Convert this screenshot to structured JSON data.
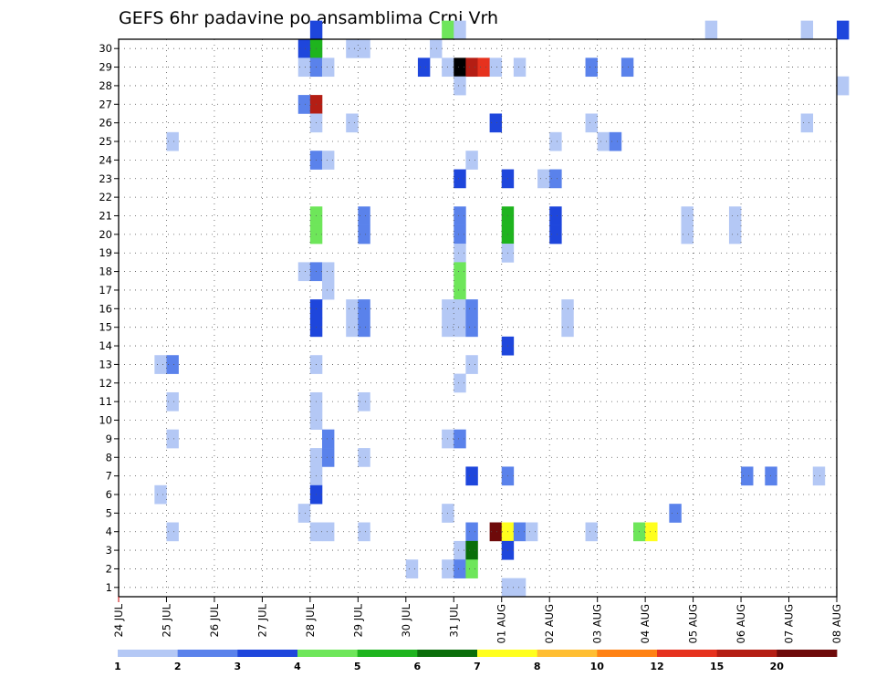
{
  "chart_data": {
    "type": "heatmap",
    "title": "GEFS 6hr padavine po ansamblima Crni Vrh",
    "xlabel": "",
    "ylabel": "",
    "x_ticks": [
      "24 JUL",
      "25 JUL",
      "26 JUL",
      "27 JUL",
      "28 JUL",
      "29 JUL",
      "30 JUL",
      "31 JUL",
      "01 AUG",
      "02 AUG",
      "03 AUG",
      "04 AUG",
      "05 AUG",
      "06 AUG",
      "07 AUG",
      "08 AUG"
    ],
    "y_ticks": [
      "1",
      "2",
      "3",
      "4",
      "5",
      "6",
      "7",
      "8",
      "9",
      "10",
      "11",
      "12",
      "13",
      "14",
      "15",
      "16",
      "17",
      "18",
      "19",
      "20",
      "21",
      "22",
      "23",
      "24",
      "25",
      "26",
      "27",
      "28",
      "29",
      "30"
    ],
    "x_step_unit": "6hr",
    "x_range_steps": [
      0,
      60
    ],
    "y_range": [
      0.5,
      30.5
    ],
    "grid": true,
    "colorbar": {
      "labels": [
        "1",
        "2",
        "3",
        "4",
        "5",
        "6",
        "7",
        "8",
        "10",
        "12",
        "15",
        "20"
      ],
      "colors": [
        "#b4c8f5",
        "#5a82eb",
        "#1e46dc",
        "#6ee65a",
        "#1eb41e",
        "#0a6e0a",
        "#ffff1e",
        "#ffbe32",
        "#ff8214",
        "#e6321e",
        "#b41e14",
        "#6e0a0a"
      ]
    },
    "cells": [
      [
        16,
        30,
        3
      ],
      [
        27,
        30,
        4
      ],
      [
        28,
        30,
        1
      ],
      [
        49,
        30,
        1
      ],
      [
        57,
        30,
        1
      ],
      [
        60,
        30,
        3
      ],
      [
        15,
        29,
        3
      ],
      [
        16,
        29,
        5
      ],
      [
        19,
        29,
        1
      ],
      [
        20,
        29,
        1
      ],
      [
        26,
        29,
        1
      ],
      [
        15,
        28,
        1
      ],
      [
        16,
        28,
        2
      ],
      [
        17,
        28,
        1
      ],
      [
        25,
        28,
        3
      ],
      [
        27,
        28,
        1
      ],
      [
        28,
        28,
        14
      ],
      [
        29,
        28,
        11
      ],
      [
        30,
        28,
        10
      ],
      [
        31,
        28,
        1
      ],
      [
        33,
        28,
        1
      ],
      [
        39,
        28,
        2
      ],
      [
        42,
        28,
        2
      ],
      [
        28,
        27,
        1
      ],
      [
        60,
        27,
        1
      ],
      [
        15,
        26,
        2
      ],
      [
        16,
        26,
        11
      ],
      [
        16,
        25,
        1
      ],
      [
        19,
        25,
        1
      ],
      [
        31,
        25,
        3
      ],
      [
        39,
        25,
        1
      ],
      [
        57,
        25,
        1
      ],
      [
        4,
        24,
        1
      ],
      [
        36,
        24,
        1
      ],
      [
        40,
        24,
        1
      ],
      [
        41,
        24,
        2
      ],
      [
        16,
        23,
        2
      ],
      [
        17,
        23,
        1
      ],
      [
        29,
        23,
        1
      ],
      [
        28,
        22,
        3
      ],
      [
        32,
        22,
        3
      ],
      [
        35,
        22,
        1
      ],
      [
        36,
        22,
        2
      ],
      [
        16,
        20,
        4
      ],
      [
        20,
        20,
        2
      ],
      [
        28,
        20,
        2
      ],
      [
        32,
        20,
        5
      ],
      [
        36,
        20,
        3
      ],
      [
        47,
        20,
        1
      ],
      [
        51,
        20,
        1
      ],
      [
        16,
        19,
        4
      ],
      [
        20,
        19,
        2
      ],
      [
        28,
        19,
        2
      ],
      [
        32,
        19,
        5
      ],
      [
        36,
        19,
        3
      ],
      [
        47,
        19,
        1
      ],
      [
        51,
        19,
        1
      ],
      [
        28,
        18,
        1
      ],
      [
        32,
        18,
        1
      ],
      [
        15,
        17,
        1
      ],
      [
        16,
        17,
        2
      ],
      [
        17,
        17,
        1
      ],
      [
        28,
        17,
        4
      ],
      [
        17,
        16,
        1
      ],
      [
        28,
        16,
        4
      ],
      [
        16,
        15,
        3
      ],
      [
        19,
        15,
        1
      ],
      [
        20,
        15,
        2
      ],
      [
        27,
        15,
        1
      ],
      [
        28,
        15,
        1
      ],
      [
        29,
        15,
        2
      ],
      [
        37,
        15,
        1
      ],
      [
        16,
        14,
        3
      ],
      [
        19,
        14,
        1
      ],
      [
        20,
        14,
        2
      ],
      [
        27,
        14,
        1
      ],
      [
        28,
        14,
        1
      ],
      [
        29,
        14,
        2
      ],
      [
        37,
        14,
        1
      ],
      [
        32,
        13,
        3
      ],
      [
        3,
        12,
        1
      ],
      [
        4,
        12,
        2
      ],
      [
        16,
        12,
        1
      ],
      [
        29,
        12,
        1
      ],
      [
        28,
        11,
        1
      ],
      [
        4,
        10,
        1
      ],
      [
        16,
        10,
        1
      ],
      [
        20,
        10,
        1
      ],
      [
        16,
        9,
        1
      ],
      [
        4,
        8,
        1
      ],
      [
        17,
        8,
        2
      ],
      [
        27,
        8,
        1
      ],
      [
        28,
        8,
        2
      ],
      [
        16,
        7,
        1
      ],
      [
        17,
        7,
        2
      ],
      [
        20,
        7,
        1
      ],
      [
        16,
        6,
        1
      ],
      [
        29,
        6,
        3
      ],
      [
        32,
        6,
        2
      ],
      [
        52,
        6,
        2
      ],
      [
        54,
        6,
        2
      ],
      [
        58,
        6,
        1
      ],
      [
        3,
        5,
        1
      ],
      [
        16,
        5,
        3
      ],
      [
        15,
        4,
        1
      ],
      [
        27,
        4,
        1
      ],
      [
        46,
        4,
        2
      ],
      [
        4,
        3,
        1
      ],
      [
        16,
        3,
        1
      ],
      [
        17,
        3,
        1
      ],
      [
        20,
        3,
        1
      ],
      [
        29,
        3,
        2
      ],
      [
        31,
        3,
        12
      ],
      [
        32,
        3,
        7
      ],
      [
        33,
        3,
        2
      ],
      [
        34,
        3,
        1
      ],
      [
        39,
        3,
        1
      ],
      [
        43,
        3,
        4
      ],
      [
        44,
        3,
        7
      ],
      [
        28,
        2,
        1
      ],
      [
        29,
        2,
        6
      ],
      [
        32,
        2,
        3
      ],
      [
        24,
        1,
        1
      ],
      [
        27,
        1,
        1
      ],
      [
        28,
        1,
        2
      ],
      [
        29,
        1,
        4
      ],
      [
        32,
        0,
        1
      ],
      [
        33,
        0,
        1
      ]
    ]
  }
}
